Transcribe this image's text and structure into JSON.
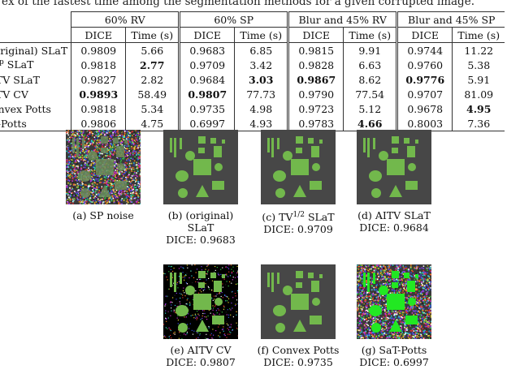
{
  "caption": "ex of the fastest time among the segmentation methods for a given corrupted image.",
  "table": {
    "groups": [
      "60% RV",
      "60% SP",
      "Blur and 45% RV",
      "Blur and 45% SP"
    ],
    "col_dice": "DICE",
    "col_time": "Time (s)",
    "rows": [
      {
        "method": "Original) SLaT",
        "cells": [
          "0.9809",
          "5.66",
          "0.9683",
          "6.85",
          "0.9815",
          "9.91",
          "0.9744",
          "11.22"
        ],
        "bold": []
      },
      {
        "method": "V^p SLaT",
        "cells": [
          "0.9818",
          "2.77",
          "0.9709",
          "3.42",
          "0.9828",
          "6.63",
          "0.9760",
          "5.38"
        ],
        "bold": [
          1
        ]
      },
      {
        "method": "ITV SLaT",
        "cells": [
          "0.9827",
          "2.82",
          "0.9684",
          "3.03",
          "0.9867",
          "8.62",
          "0.9776",
          "5.91"
        ],
        "bold": [
          3,
          4,
          6
        ]
      },
      {
        "method": "ITV CV",
        "cells": [
          "0.9893",
          "58.49",
          "0.9807",
          "77.73",
          "0.9790",
          "77.54",
          "0.9707",
          "81.09"
        ],
        "bold": [
          0,
          2
        ]
      },
      {
        "method": "onvex Potts",
        "cells": [
          "0.9818",
          "5.34",
          "0.9735",
          "4.98",
          "0.9723",
          "5.12",
          "0.9678",
          "4.95"
        ],
        "bold": [
          7
        ]
      },
      {
        "method": "T-Potts",
        "cells": [
          "0.9806",
          "4.75",
          "0.6997",
          "4.93",
          "0.9783",
          "4.66",
          "0.8003",
          "7.36"
        ],
        "bold": [
          5
        ]
      }
    ]
  },
  "colors": {
    "bg_gray": "#474747",
    "shape_green": "#72b84c",
    "shape_bright": "#22e822",
    "black": "#000000"
  },
  "figures": [
    {
      "caption": "(a) SP noise",
      "dice": ""
    },
    {
      "caption": "(b) (original) SLaT",
      "dice": "DICE: 0.9683"
    },
    {
      "caption": "(c) TV1/2 SLaT",
      "dice": "DICE: 0.9709"
    },
    {
      "caption": "(d) AITV SLaT",
      "dice": "DICE: 0.9684"
    },
    {
      "caption": "(e) AITV CV",
      "dice": "DICE: 0.9807"
    },
    {
      "caption": "(f) Convex Potts",
      "dice": "DICE: 0.9735"
    },
    {
      "caption": "(g) SaT-Potts",
      "dice": "DICE: 0.6997"
    }
  ]
}
